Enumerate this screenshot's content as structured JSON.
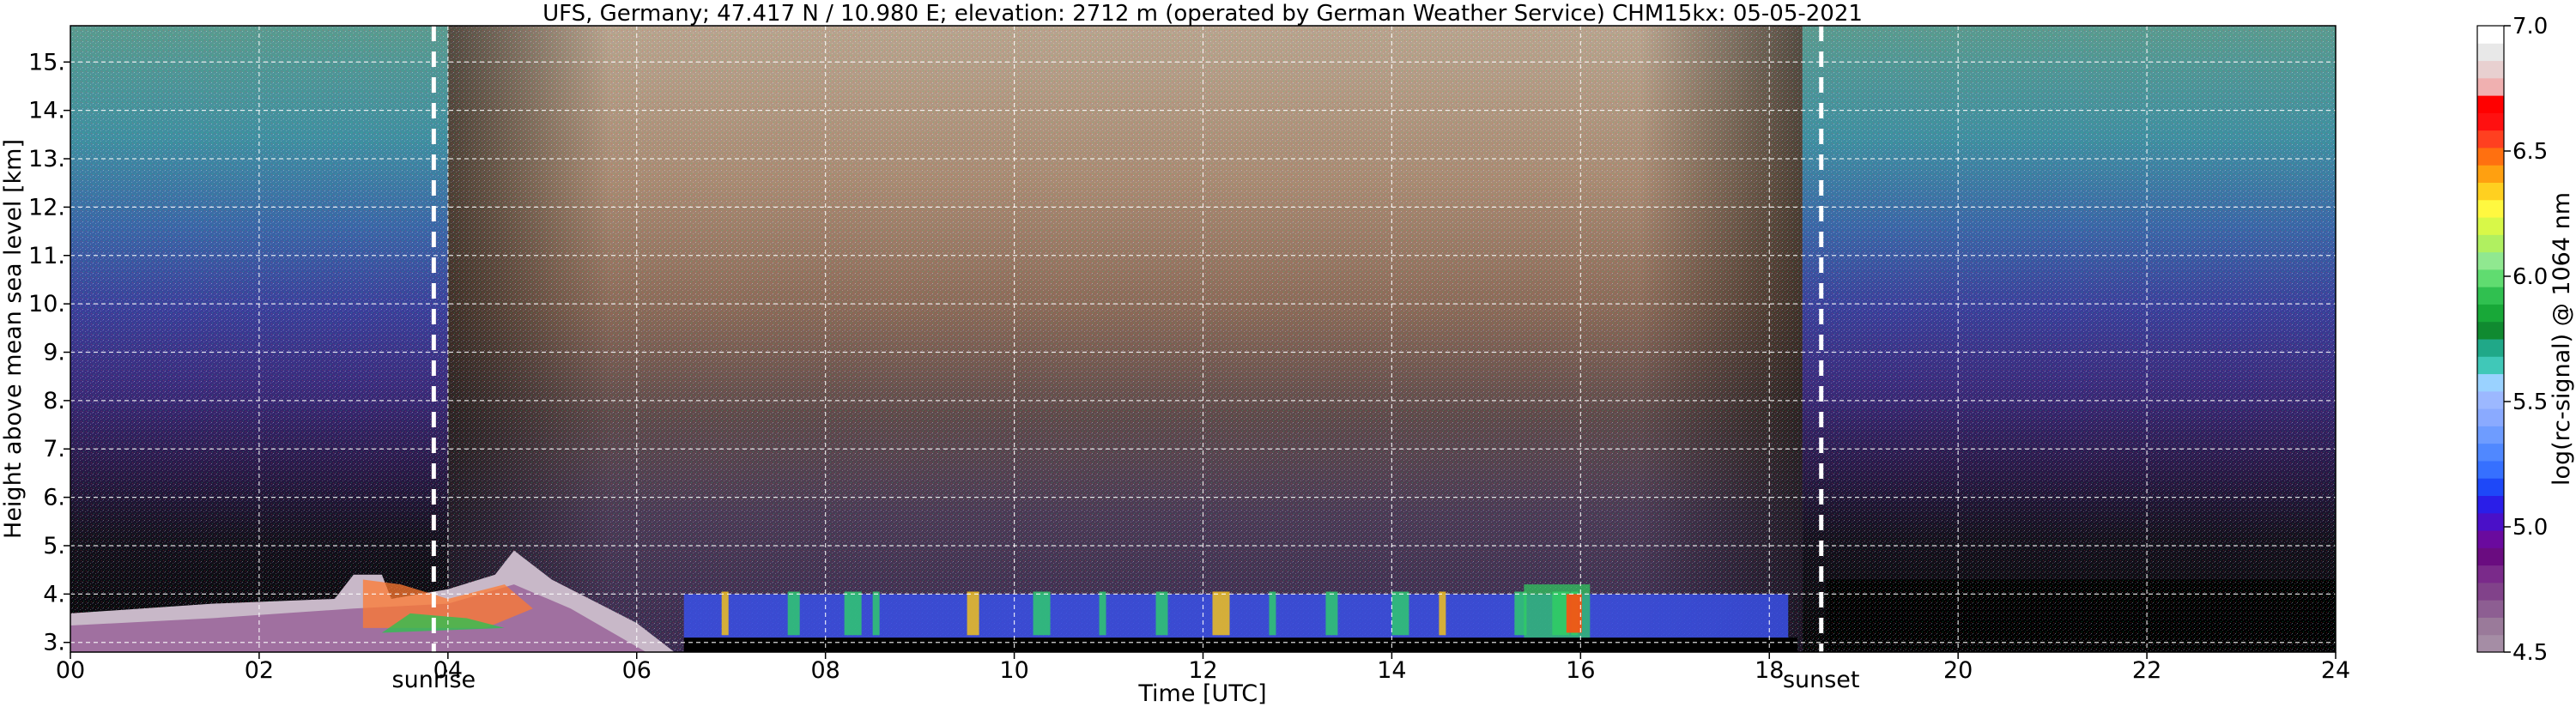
{
  "chart_data": {
    "type": "heatmap",
    "title": "UFS, Germany; 47.417 N / 10.980 E; elevation: 2712 m  (operated by German Weather Service)    CHM15kx: 05-05-2021",
    "xlabel": "Time [UTC]",
    "ylabel": "Height above mean sea level [km]",
    "xlim": [
      0,
      24
    ],
    "ylim": [
      2.8,
      15.75
    ],
    "x_ticks": [
      0,
      2,
      4,
      6,
      8,
      10,
      12,
      14,
      16,
      18,
      20,
      22,
      24
    ],
    "x_tick_labels": [
      "00",
      "02",
      "04",
      "06",
      "08",
      "10",
      "12",
      "14",
      "16",
      "18",
      "20",
      "22",
      "24"
    ],
    "y_ticks": [
      3,
      4,
      5,
      6,
      7,
      8,
      9,
      10,
      11,
      12,
      13,
      14,
      15
    ],
    "y_tick_labels": [
      "3.",
      "4.",
      "5.",
      "6.",
      "7.",
      "8.",
      "9.",
      "10.",
      "11.",
      "12.",
      "13.",
      "14.",
      "15."
    ],
    "grid": true,
    "annotations": [
      {
        "text": "sunrise",
        "x": 3.85
      },
      {
        "text": "sunset",
        "x": 18.55
      }
    ],
    "colorbar": {
      "label": "log(rc-signal) @ 1064 nm",
      "range": [
        4.5,
        7.0
      ],
      "ticks": [
        4.5,
        5.0,
        5.5,
        6.0,
        6.5,
        7.0
      ],
      "tick_labels": [
        "4.5",
        "5.0",
        "5.5",
        "6.0",
        "6.5",
        "7.0"
      ],
      "colors": [
        "#a58da5",
        "#9a7a9a",
        "#8d5e92",
        "#81428a",
        "#7a2a8a",
        "#6a0c80",
        "#6a0a9e",
        "#4a10c8",
        "#2a1ee8",
        "#1e48f8",
        "#3670ff",
        "#5088ff",
        "#6e9cff",
        "#8aaaff",
        "#9cb8ff",
        "#9ad2ff",
        "#40c8b8",
        "#20a888",
        "#108a30",
        "#18a838",
        "#30c050",
        "#60dc70",
        "#90e890",
        "#b0f060",
        "#d8f848",
        "#fff840",
        "#ffd020",
        "#ffa010",
        "#ff7010",
        "#ff4020",
        "#ff1010",
        "#ff0000",
        "#f0b0b0",
        "#e8d0d0",
        "#e8e8e8",
        "#ffffff"
      ]
    }
  }
}
